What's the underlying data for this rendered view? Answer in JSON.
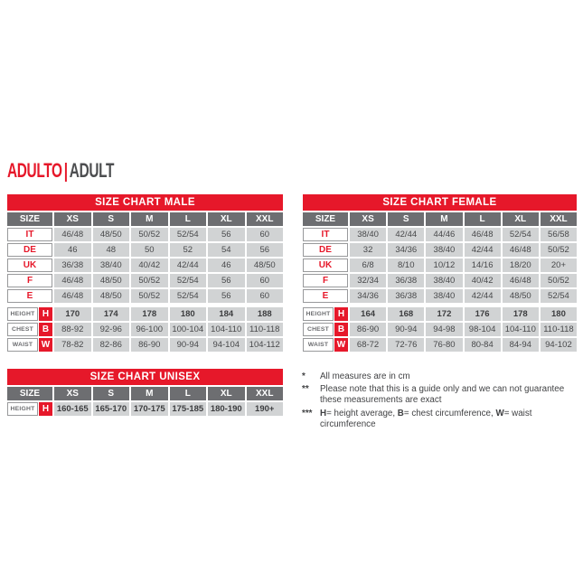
{
  "header": {
    "title_primary": "ADULTO",
    "title_divider": "|",
    "title_secondary": "ADULT"
  },
  "colors": {
    "red": "#e6182a",
    "column_header_gray": "#6d6e71",
    "cell_gray": "#d1d3d4",
    "text_dark": "#48494b",
    "title_secondary_gray": "#4d4e50"
  },
  "tables": {
    "male": {
      "title": "SIZE CHART MALE",
      "size_header": "SIZE",
      "columns": [
        "XS",
        "S",
        "M",
        "L",
        "XL",
        "XXL"
      ],
      "size_rows": [
        {
          "label": "IT",
          "values": [
            "46/48",
            "48/50",
            "50/52",
            "52/54",
            "56",
            "60"
          ]
        },
        {
          "label": "DE",
          "values": [
            "46",
            "48",
            "50",
            "52",
            "54",
            "56"
          ]
        },
        {
          "label": "UK",
          "values": [
            "36/38",
            "38/40",
            "40/42",
            "42/44",
            "46",
            "48/50"
          ]
        },
        {
          "label": "F",
          "values": [
            "46/48",
            "48/50",
            "50/52",
            "52/54",
            "56",
            "60"
          ]
        },
        {
          "label": "E",
          "values": [
            "46/48",
            "48/50",
            "50/52",
            "52/54",
            "56",
            "60"
          ]
        }
      ],
      "measure_rows": [
        {
          "label": "HEIGHT",
          "badge": "H",
          "bold": true,
          "values": [
            "170",
            "174",
            "178",
            "180",
            "184",
            "188"
          ]
        },
        {
          "label": "CHEST",
          "badge": "B",
          "bold": false,
          "values": [
            "88-92",
            "92-96",
            "96-100",
            "100-104",
            "104-110",
            "110-118"
          ]
        },
        {
          "label": "WAIST",
          "badge": "W",
          "bold": false,
          "values": [
            "78-82",
            "82-86",
            "86-90",
            "90-94",
            "94-104",
            "104-112"
          ]
        }
      ]
    },
    "female": {
      "title": "SIZE CHART FEMALE",
      "size_header": "SIZE",
      "columns": [
        "XS",
        "S",
        "M",
        "L",
        "XL",
        "XXL"
      ],
      "size_rows": [
        {
          "label": "IT",
          "values": [
            "38/40",
            "42/44",
            "44/46",
            "46/48",
            "52/54",
            "56/58"
          ]
        },
        {
          "label": "DE",
          "values": [
            "32",
            "34/36",
            "38/40",
            "42/44",
            "46/48",
            "50/52"
          ]
        },
        {
          "label": "UK",
          "values": [
            "6/8",
            "8/10",
            "10/12",
            "14/16",
            "18/20",
            "20+"
          ]
        },
        {
          "label": "F",
          "values": [
            "32/34",
            "36/38",
            "38/40",
            "40/42",
            "46/48",
            "50/52"
          ]
        },
        {
          "label": "E",
          "values": [
            "34/36",
            "36/38",
            "38/40",
            "42/44",
            "48/50",
            "52/54"
          ]
        }
      ],
      "measure_rows": [
        {
          "label": "HEIGHT",
          "badge": "H",
          "bold": true,
          "values": [
            "164",
            "168",
            "172",
            "176",
            "178",
            "180"
          ]
        },
        {
          "label": "CHEST",
          "badge": "B",
          "bold": false,
          "values": [
            "86-90",
            "90-94",
            "94-98",
            "98-104",
            "104-110",
            "110-118"
          ]
        },
        {
          "label": "WAIST",
          "badge": "W",
          "bold": false,
          "values": [
            "68-72",
            "72-76",
            "76-80",
            "80-84",
            "84-94",
            "94-102"
          ]
        }
      ]
    },
    "unisex": {
      "title": "SIZE CHART UNISEX",
      "size_header": "SIZE",
      "columns": [
        "XS",
        "S",
        "M",
        "L",
        "XL",
        "XXL"
      ],
      "size_rows": [],
      "measure_rows": [
        {
          "label": "HEIGHT",
          "badge": "H",
          "bold": true,
          "values": [
            "160-165",
            "165-170",
            "170-175",
            "175-185",
            "180-190",
            "190+"
          ]
        }
      ]
    }
  },
  "footnotes": [
    {
      "marker": "*",
      "segments": [
        {
          "t": "All measures are in cm",
          "b": false
        }
      ]
    },
    {
      "marker": "**",
      "segments": [
        {
          "t": "Please note that this is a guide only and we can not guarantee these measurements are exact",
          "b": false
        }
      ]
    },
    {
      "marker": "***",
      "segments": [
        {
          "t": "H",
          "b": true
        },
        {
          "t": "= height average, ",
          "b": false
        },
        {
          "t": "B",
          "b": true
        },
        {
          "t": "= chest circumference, ",
          "b": false
        },
        {
          "t": "W",
          "b": true
        },
        {
          "t": "= waist circumference",
          "b": false
        }
      ]
    }
  ]
}
